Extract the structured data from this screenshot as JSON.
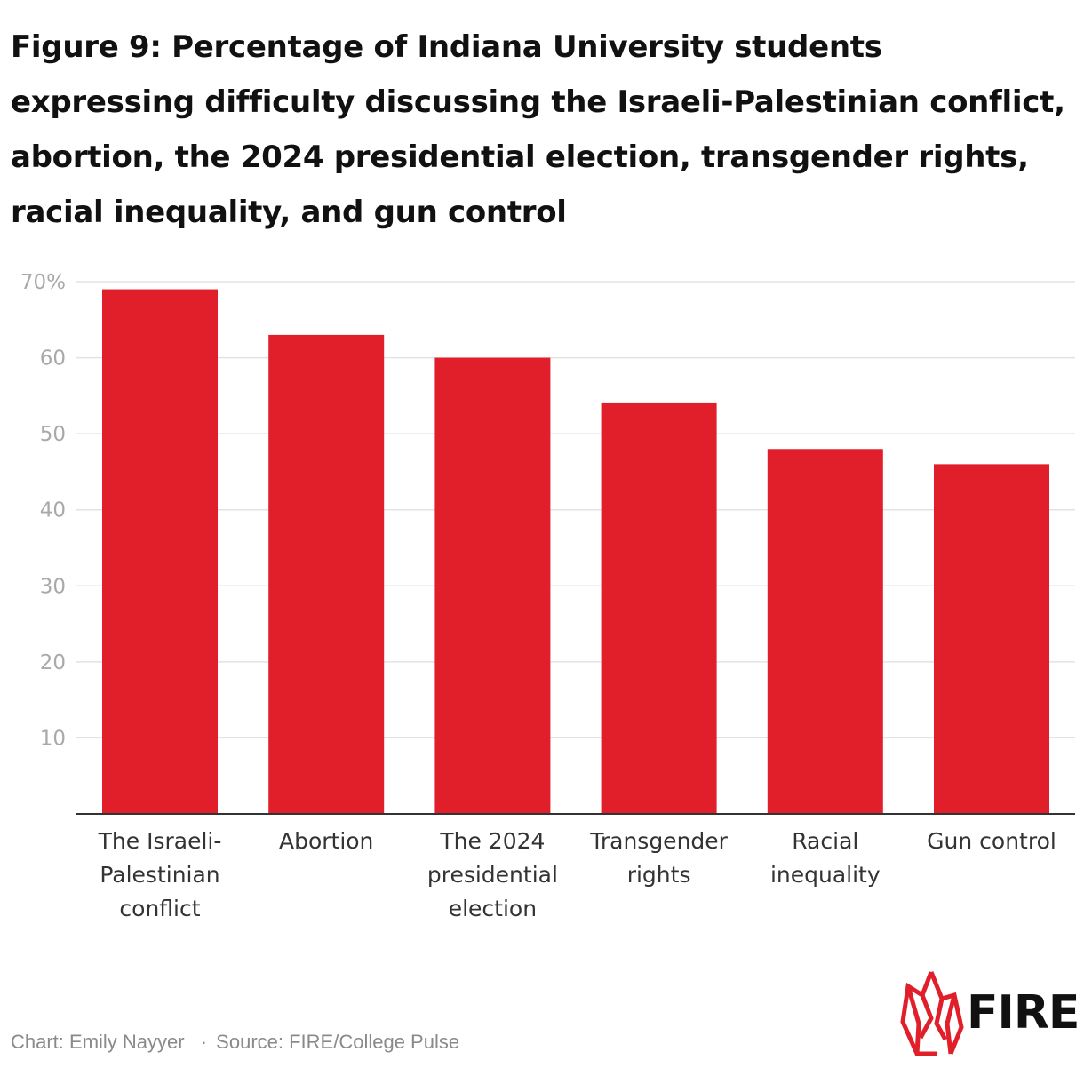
{
  "chart_data": {
    "type": "bar",
    "title": "Figure 9: Percentage of Indiana University students expressing difficulty discussing the Israeli-Palestinian conflict, abortion, the 2024 presidential election, transgender rights, racial inequality, and gun control",
    "categories": [
      [
        "The Israeli-",
        "Palestinian",
        "conflict"
      ],
      [
        "Abortion"
      ],
      [
        "The 2024",
        "presidential",
        "election"
      ],
      [
        "Transgender",
        "rights"
      ],
      [
        "Racial",
        "inequality"
      ],
      [
        "Gun control"
      ]
    ],
    "values": [
      69,
      63,
      60,
      54,
      48,
      46
    ],
    "yticks": [
      10,
      20,
      30,
      40,
      50,
      60,
      70
    ],
    "ytick_labels": [
      "10",
      "20",
      "30",
      "40",
      "50",
      "60",
      "70%"
    ],
    "ylim": [
      0,
      70
    ],
    "grid": true,
    "bar_color": "#e11f2a"
  },
  "footer": {
    "chart_credit": "Chart: Emily Nayyer",
    "separator": "·",
    "source": "Source: FIRE/College Pulse"
  },
  "logo": {
    "text": "FIRE",
    "icon": "flame-icon",
    "color": "#e11f2a"
  }
}
